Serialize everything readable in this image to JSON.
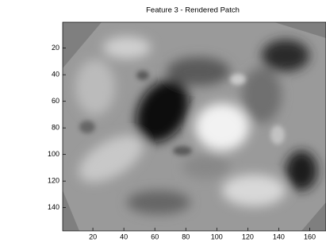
{
  "chart_data": {
    "type": "image",
    "title": "Feature 3 - Rendered Patch",
    "xlim": [
      0.5,
      170.5
    ],
    "xticks": [
      20,
      40,
      60,
      80,
      100,
      120,
      140,
      160
    ],
    "ylim": [
      0.5,
      157.5
    ],
    "yticks": [
      20,
      40,
      60,
      80,
      100,
      120,
      140
    ],
    "y_reversed": true,
    "colormap": "gray"
  }
}
